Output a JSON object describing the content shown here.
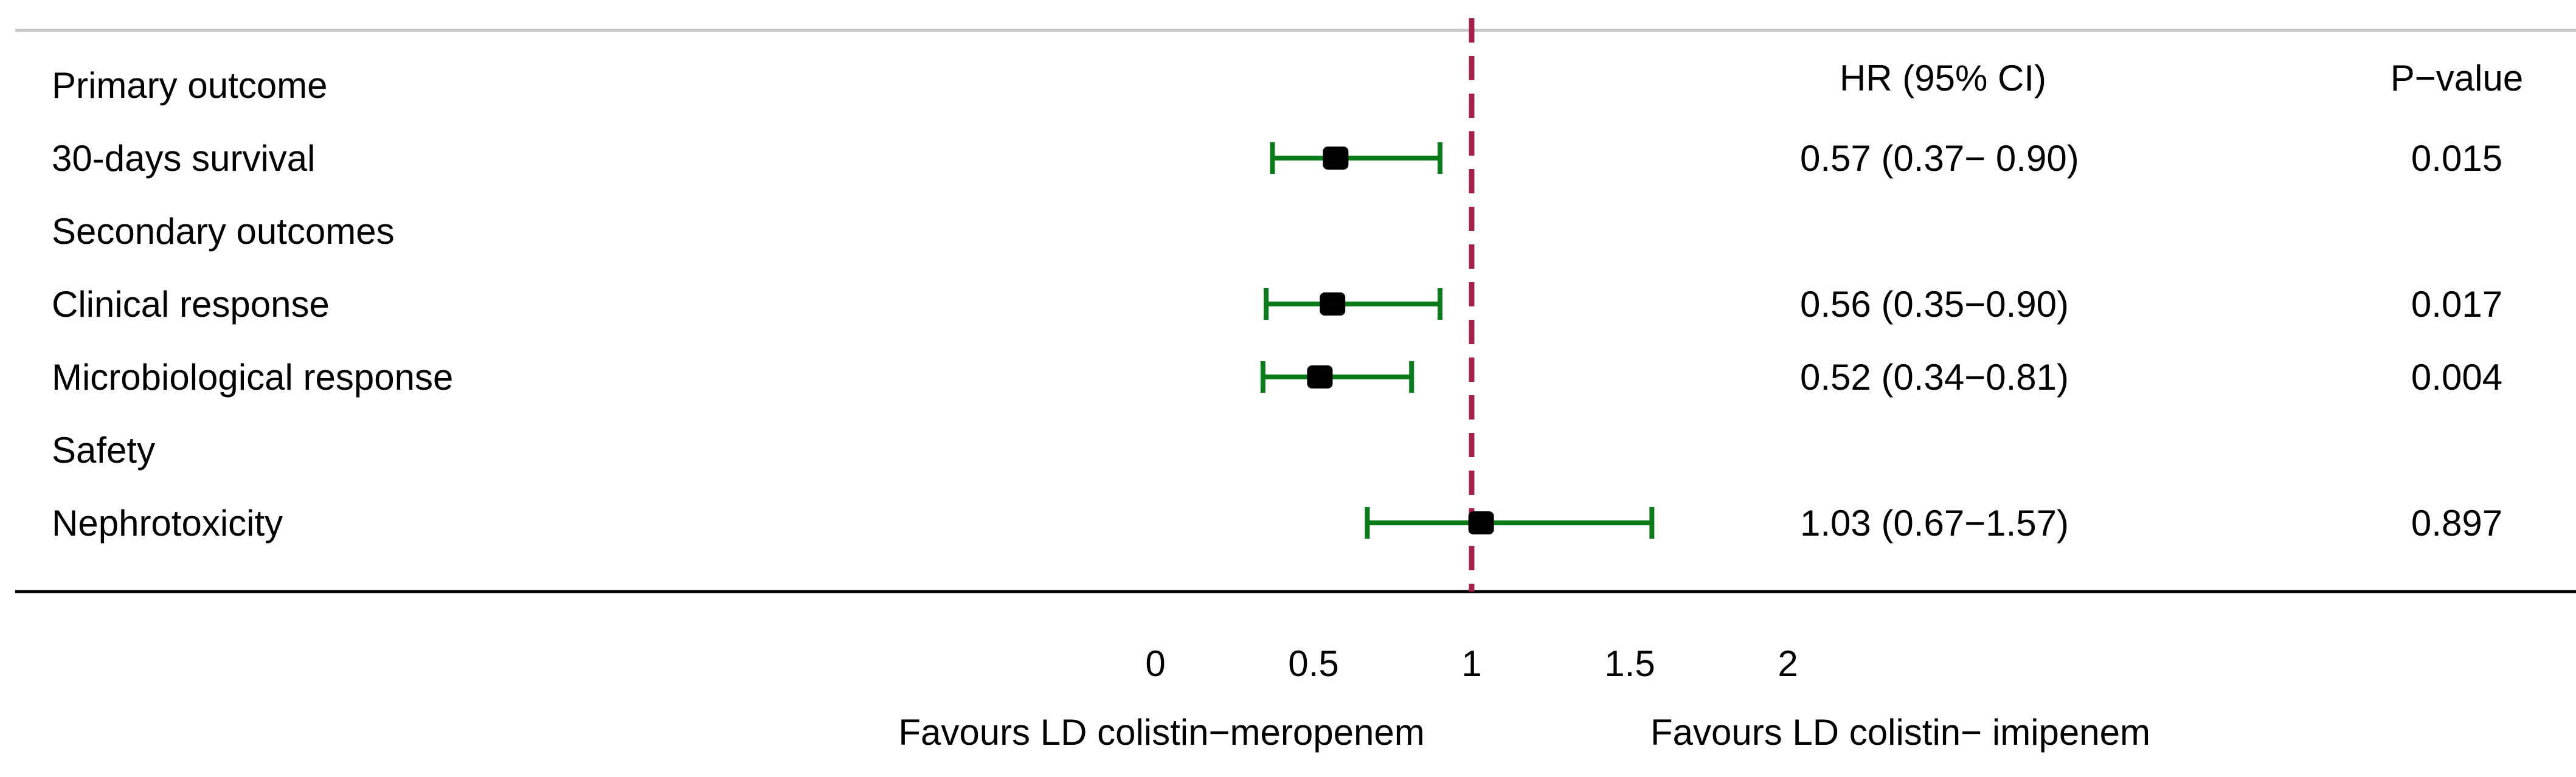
{
  "chart_data": {
    "type": "forest",
    "column_headers": {
      "estimate": "HR (95% CI)",
      "p_value": "P−value"
    },
    "rows": [
      {
        "label": "Primary outcome",
        "kind": "header"
      },
      {
        "label": "30-days survival",
        "kind": "result",
        "hr": 0.57,
        "lower": 0.37,
        "upper": 0.9,
        "estimate_text": "0.57 (0.37− 0.90)",
        "p_text": "0.015"
      },
      {
        "label": "Secondary outcomes",
        "kind": "header"
      },
      {
        "label": "Clinical response",
        "kind": "result",
        "hr": 0.56,
        "lower": 0.35,
        "upper": 0.9,
        "estimate_text": "0.56 (0.35−0.90)",
        "p_text": "0.017"
      },
      {
        "label": "Microbiological response",
        "kind": "result",
        "hr": 0.52,
        "lower": 0.34,
        "upper": 0.81,
        "estimate_text": "0.52 (0.34−0.81)",
        "p_text": "0.004"
      },
      {
        "label": "Safety",
        "kind": "header"
      },
      {
        "label": "Nephrotoxicity",
        "kind": "result",
        "hr": 1.03,
        "lower": 0.67,
        "upper": 1.57,
        "estimate_text": "1.03 (0.67−1.57)",
        "p_text": "0.897"
      }
    ],
    "x_ticks": [
      0,
      0.5,
      1,
      1.5,
      2
    ],
    "x_tick_labels": [
      "0",
      "0.5",
      "1",
      "1.5",
      "2"
    ],
    "xlim": [
      0,
      2
    ],
    "reference_line": 1,
    "favours_left": "Favours LD colistin−meropenem",
    "favours_right": "Favours LD colistin− imipenem",
    "colors": {
      "ci": "#0a7a1a",
      "point": "#000000",
      "reference": "#a3234a",
      "rule": "#c8c8c8",
      "axis": "#000000"
    }
  }
}
